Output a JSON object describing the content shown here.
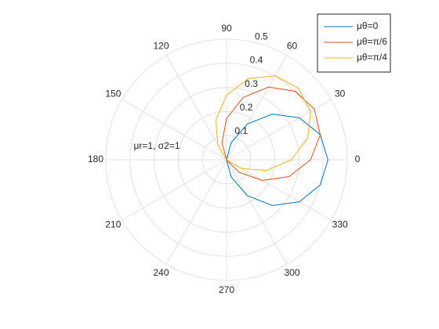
{
  "chart_data": {
    "type": "polar",
    "annotation": "μr=1, σ2=1",
    "theta": [
      0,
      15,
      30,
      45,
      60,
      75,
      90,
      105,
      120,
      135,
      150,
      165,
      180,
      195,
      210,
      225,
      240,
      255,
      270,
      285,
      300,
      315,
      330,
      345,
      360
    ],
    "thetaticks": [
      0,
      30,
      60,
      90,
      120,
      150,
      180,
      210,
      240,
      270,
      300,
      330
    ],
    "rlim": [
      0,
      0.5
    ],
    "rticks": [
      0.1,
      0.2,
      0.3,
      0.4,
      0.5
    ],
    "grid": true,
    "legend_position": "northeast",
    "series": [
      {
        "name": "μθ=0",
        "color": "#0072bd",
        "values": [
          0.42,
          0.402,
          0.348,
          0.268,
          0.171,
          0.073,
          0,
          0,
          0,
          0,
          0,
          0,
          0,
          0,
          0,
          0,
          0,
          0,
          0,
          0.073,
          0.171,
          0.268,
          0.348,
          0.402,
          0.42
        ]
      },
      {
        "name": "μθ=π/6",
        "color": "#d95319",
        "values": [
          0.348,
          0.402,
          0.42,
          0.402,
          0.348,
          0.268,
          0.171,
          0.073,
          0,
          0,
          0,
          0,
          0,
          0,
          0,
          0,
          0,
          0,
          0,
          0,
          0,
          0.073,
          0.171,
          0.268,
          0.348
        ]
      },
      {
        "name": "μθ=π/4",
        "color": "#edb120",
        "values": [
          0.268,
          0.348,
          0.402,
          0.42,
          0.402,
          0.348,
          0.268,
          0.171,
          0.073,
          0,
          0,
          0,
          0,
          0,
          0,
          0,
          0,
          0,
          0,
          0,
          0,
          0,
          0.073,
          0.171,
          0.268
        ]
      }
    ]
  }
}
